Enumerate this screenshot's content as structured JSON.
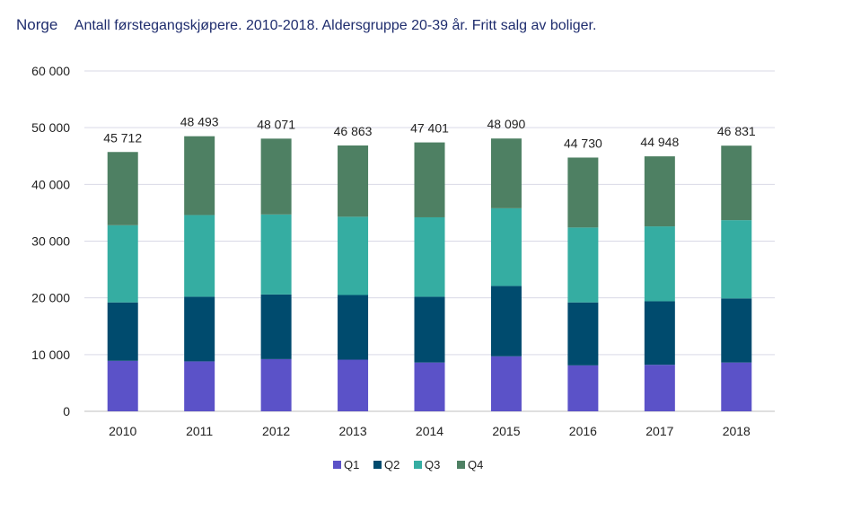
{
  "header": {
    "title": "Norge",
    "subtitle": "Antall førstegangskjøpere. 2010-2018. Aldersgruppe 20-39 år. Fritt salg av boliger."
  },
  "chart_data": {
    "type": "bar",
    "stacked": true,
    "categories": [
      "2010",
      "2011",
      "2012",
      "2013",
      "2014",
      "2015",
      "2016",
      "2017",
      "2018"
    ],
    "series": [
      {
        "name": "Q1",
        "color": "#5b52c8",
        "values": [
          8900,
          8800,
          9200,
          9100,
          8600,
          9700,
          8100,
          8200,
          8600
        ]
      },
      {
        "name": "Q2",
        "color": "#004b6e",
        "values": [
          10300,
          11400,
          11400,
          11400,
          11600,
          12400,
          11100,
          11200,
          11300
        ]
      },
      {
        "name": "Q3",
        "color": "#35ada2",
        "values": [
          13600,
          14400,
          14100,
          13800,
          14000,
          13700,
          13200,
          13200,
          13800
        ]
      },
      {
        "name": "Q4",
        "color": "#4e8063",
        "values": [
          12912,
          13893,
          13371,
          12563,
          13201,
          12290,
          12330,
          12348,
          13131
        ]
      }
    ],
    "totals": [
      45712,
      48493,
      48071,
      46863,
      47401,
      48090,
      44730,
      44948,
      46831
    ],
    "total_labels": [
      "45 712",
      "48 493",
      "48 071",
      "46 863",
      "47 401",
      "48 090",
      "44 730",
      "44 948",
      "46 831"
    ],
    "y_ticks": [
      0,
      10000,
      20000,
      30000,
      40000,
      50000,
      60000
    ],
    "y_tick_labels": [
      "0",
      "10 000",
      "20 000",
      "30 000",
      "40 000",
      "50 000",
      "60 000"
    ],
    "ylim": [
      0,
      60000
    ],
    "grid": true,
    "legend_position": "bottom"
  }
}
